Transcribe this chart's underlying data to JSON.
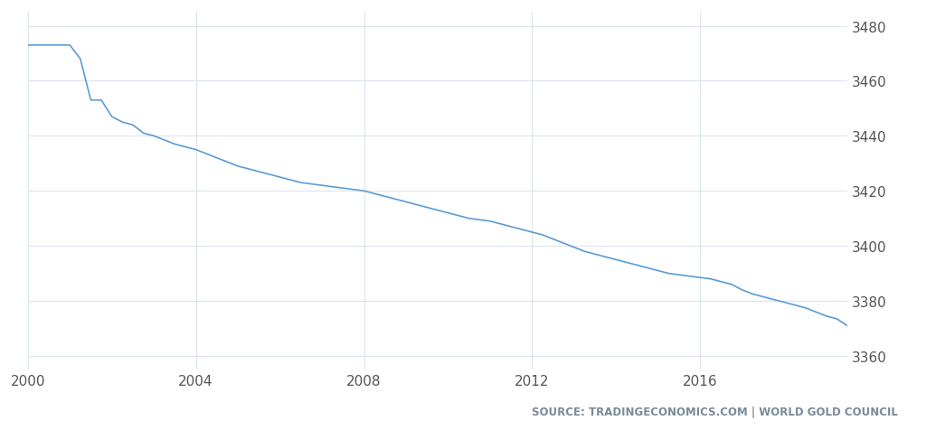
{
  "title": "",
  "source_text": "SOURCE: TRADINGECONOMICS.COM | WORLD GOLD COUNCIL",
  "line_color": "#5b9bd5",
  "background_color": "#ffffff",
  "grid_color": "#dde4ef",
  "axis_label_color": "#555555",
  "source_color": "#7a8a99",
  "xlim": [
    2000.0,
    2019.5
  ],
  "ylim": [
    3355,
    3485
  ],
  "yticks": [
    3360,
    3380,
    3400,
    3420,
    3440,
    3460,
    3480
  ],
  "xticks": [
    2000,
    2004,
    2008,
    2012,
    2016
  ],
  "series": [
    [
      2000.0,
      3473.0
    ],
    [
      2000.25,
      3473.0
    ],
    [
      2000.5,
      3473.0
    ],
    [
      2000.75,
      3473.0
    ],
    [
      2001.0,
      3473.0
    ],
    [
      2001.25,
      3468.0
    ],
    [
      2001.5,
      3453.0
    ],
    [
      2001.75,
      3453.0
    ],
    [
      2002.0,
      3447.0
    ],
    [
      2002.25,
      3445.0
    ],
    [
      2002.5,
      3444.0
    ],
    [
      2002.75,
      3441.0
    ],
    [
      2003.0,
      3440.0
    ],
    [
      2003.25,
      3438.5
    ],
    [
      2003.5,
      3437.0
    ],
    [
      2003.75,
      3436.0
    ],
    [
      2004.0,
      3435.0
    ],
    [
      2004.25,
      3433.5
    ],
    [
      2004.5,
      3432.0
    ],
    [
      2004.75,
      3430.5
    ],
    [
      2005.0,
      3429.0
    ],
    [
      2005.25,
      3428.0
    ],
    [
      2005.5,
      3427.0
    ],
    [
      2005.75,
      3426.0
    ],
    [
      2006.0,
      3425.0
    ],
    [
      2006.25,
      3424.0
    ],
    [
      2006.5,
      3423.0
    ],
    [
      2006.75,
      3422.5
    ],
    [
      2007.0,
      3422.0
    ],
    [
      2007.25,
      3421.5
    ],
    [
      2007.5,
      3421.0
    ],
    [
      2007.75,
      3420.5
    ],
    [
      2008.0,
      3420.0
    ],
    [
      2008.25,
      3419.0
    ],
    [
      2008.5,
      3418.0
    ],
    [
      2008.75,
      3417.0
    ],
    [
      2009.0,
      3416.0
    ],
    [
      2009.25,
      3415.0
    ],
    [
      2009.5,
      3414.0
    ],
    [
      2009.75,
      3413.0
    ],
    [
      2010.0,
      3412.0
    ],
    [
      2010.25,
      3411.0
    ],
    [
      2010.5,
      3410.0
    ],
    [
      2010.75,
      3409.5
    ],
    [
      2011.0,
      3409.0
    ],
    [
      2011.25,
      3408.0
    ],
    [
      2011.5,
      3407.0
    ],
    [
      2011.75,
      3406.0
    ],
    [
      2012.0,
      3405.0
    ],
    [
      2012.25,
      3404.0
    ],
    [
      2012.5,
      3402.5
    ],
    [
      2012.75,
      3401.0
    ],
    [
      2013.0,
      3399.5
    ],
    [
      2013.25,
      3398.0
    ],
    [
      2013.5,
      3397.0
    ],
    [
      2013.75,
      3396.0
    ],
    [
      2014.0,
      3395.0
    ],
    [
      2014.25,
      3394.0
    ],
    [
      2014.5,
      3393.0
    ],
    [
      2014.75,
      3392.0
    ],
    [
      2015.0,
      3391.0
    ],
    [
      2015.25,
      3390.0
    ],
    [
      2015.5,
      3389.5
    ],
    [
      2015.75,
      3389.0
    ],
    [
      2016.0,
      3388.5
    ],
    [
      2016.25,
      3388.0
    ],
    [
      2016.5,
      3387.0
    ],
    [
      2016.75,
      3386.0
    ],
    [
      2017.0,
      3384.0
    ],
    [
      2017.25,
      3382.5
    ],
    [
      2017.5,
      3381.5
    ],
    [
      2017.75,
      3380.5
    ],
    [
      2018.0,
      3379.5
    ],
    [
      2018.25,
      3378.5
    ],
    [
      2018.5,
      3377.5
    ],
    [
      2018.75,
      3376.0
    ],
    [
      2019.0,
      3374.5
    ],
    [
      2019.25,
      3373.5
    ],
    [
      2019.5,
      3371.0
    ]
  ]
}
